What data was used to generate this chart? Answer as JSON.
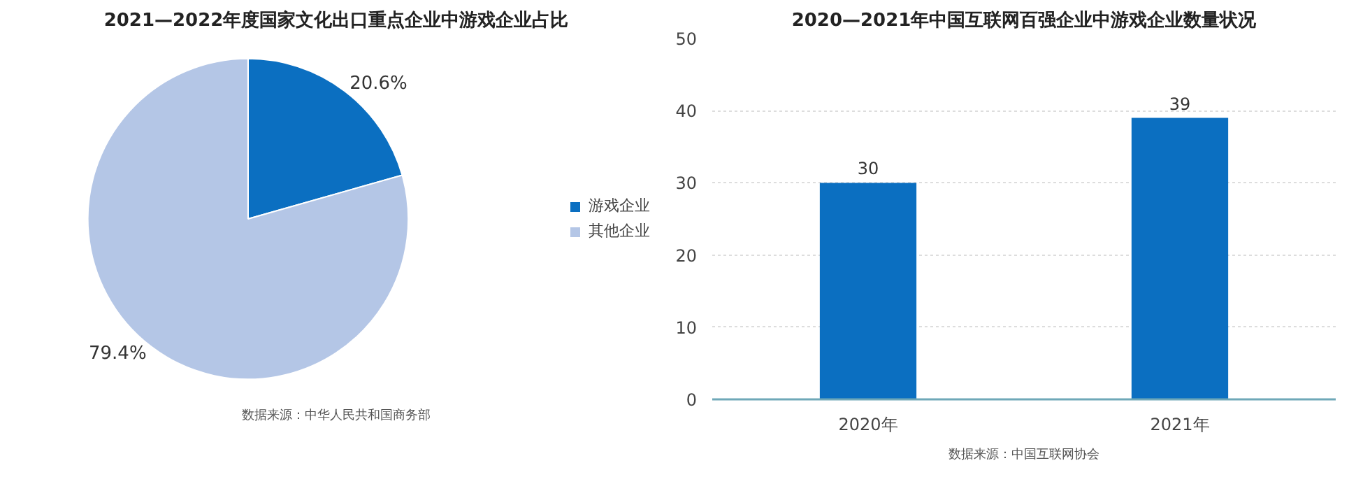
{
  "chart_data": [
    {
      "type": "pie",
      "title": "2021—2022年度国家文化出口重点企业中游戏企业占比",
      "categories": [
        "游戏企业",
        "其他企业"
      ],
      "values": [
        20.6,
        79.4
      ],
      "colors": [
        "#0b6fc1",
        "#b4c6e6"
      ],
      "value_labels": [
        "20.6%",
        "79.4%"
      ],
      "legend": "right",
      "annotations": [
        "数据来源：中华人民共和国商务部"
      ]
    },
    {
      "type": "bar",
      "title": "2020—2021年中国互联网百强企业中游戏企业数量状况",
      "categories": [
        "2020年",
        "2021年"
      ],
      "values": [
        30,
        39
      ],
      "color": "#0b6fc1",
      "ylim": [
        0,
        50
      ],
      "yticks": [
        0,
        10,
        20,
        30,
        40,
        50
      ],
      "grid": "y",
      "data_labels": true,
      "annotations": [
        "数据来源：中国互联网协会"
      ]
    }
  ]
}
